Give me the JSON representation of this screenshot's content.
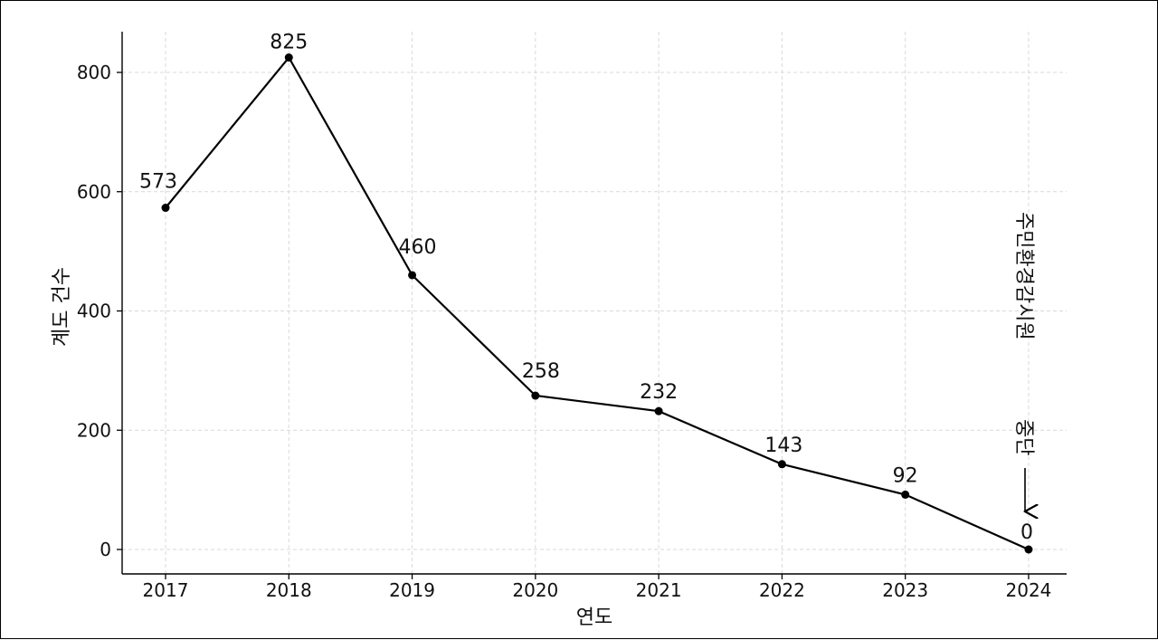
{
  "chart_data": {
    "type": "line",
    "title": "",
    "xlabel": "연도",
    "ylabel": "계도 건수",
    "categories": [
      "2017",
      "2018",
      "2019",
      "2020",
      "2021",
      "2022",
      "2023",
      "2024"
    ],
    "series": [
      {
        "values": [
          573,
          825,
          460,
          258,
          232,
          143,
          92,
          0
        ],
        "data_labels": [
          "573",
          "825",
          "460",
          "258",
          "232",
          "143",
          "92",
          "0"
        ]
      }
    ],
    "ylim": [
      -40,
      870
    ],
    "yticks": [
      0,
      200,
      400,
      600,
      800
    ],
    "ytick_labels": [
      "0",
      "200",
      "400",
      "600",
      "800"
    ],
    "grid": true,
    "annotation": {
      "line1": "주민환경감시원",
      "line2": "중단",
      "points_to": "2024"
    },
    "colors": {
      "line": "#000000",
      "grid": "#d9d9d9"
    }
  }
}
